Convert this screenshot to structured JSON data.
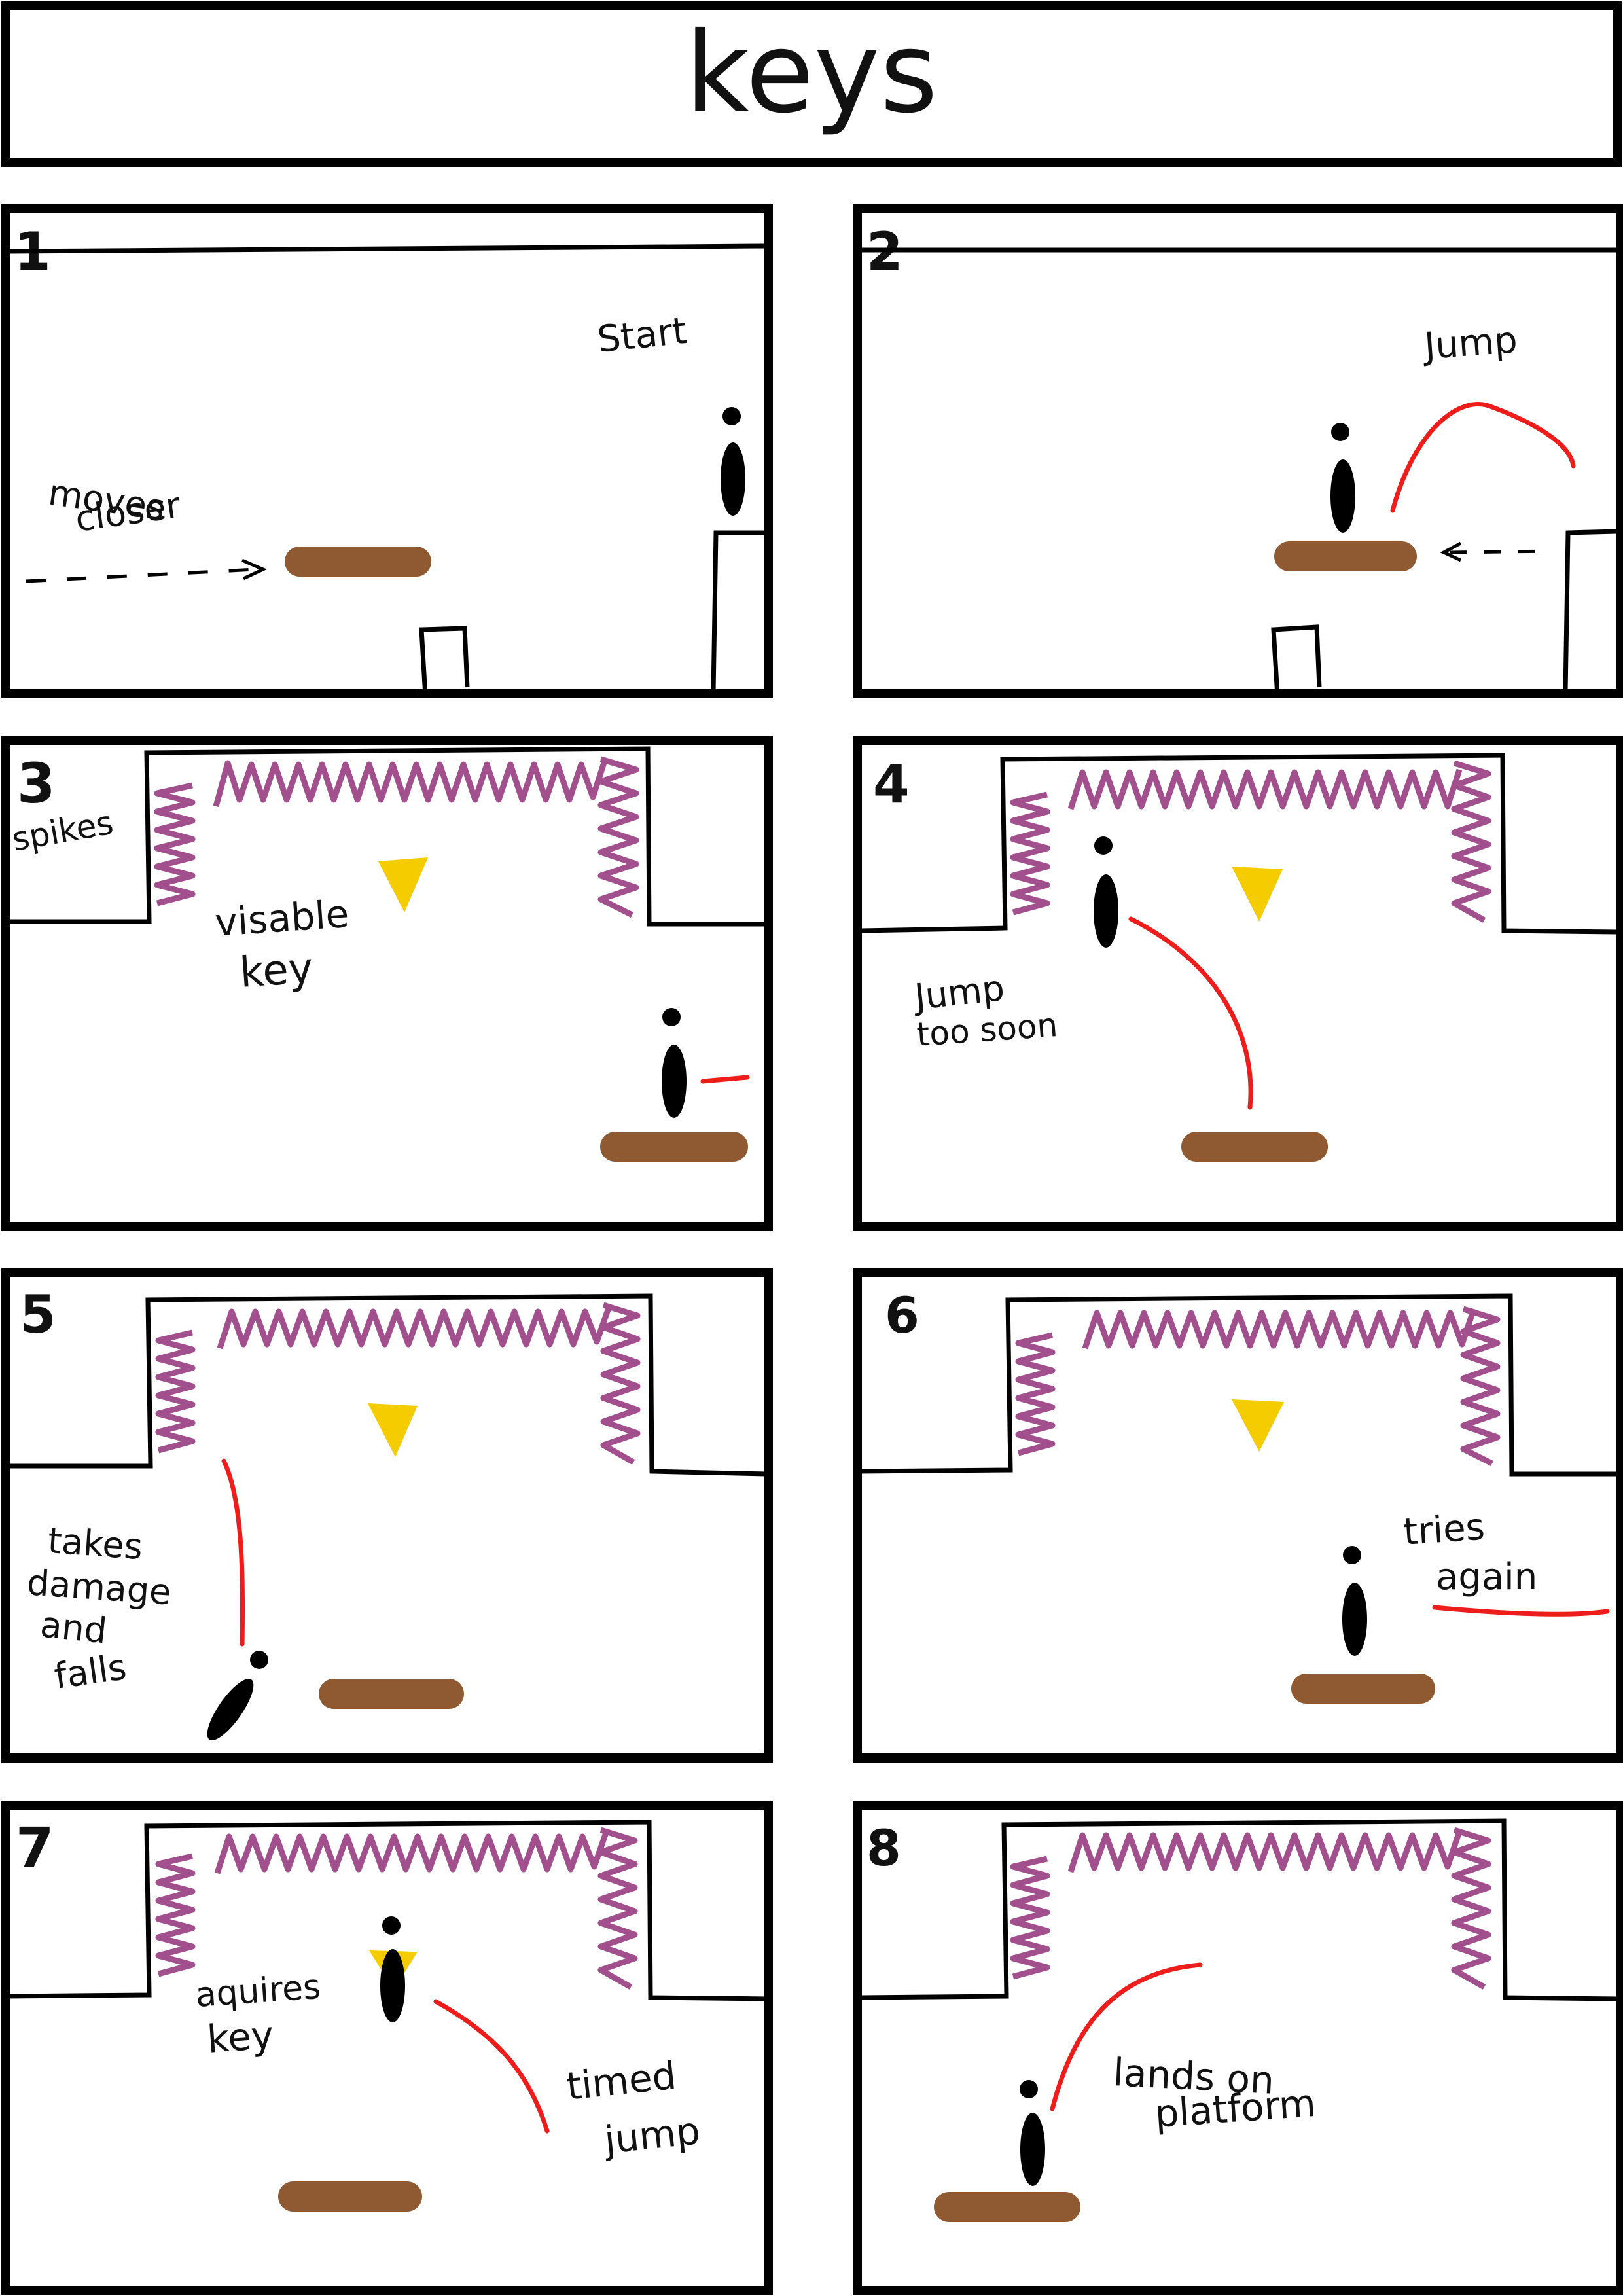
{
  "title": "keys",
  "colors": {
    "ink": "#000000",
    "spikes": "#a24f8e",
    "platform": "#8f5a31",
    "key": "#f5cc00",
    "arc": "#ef1c1c"
  },
  "icons": {
    "character": "stick-figure-icon",
    "key": "key-triangle-icon",
    "spikes": "spikes-icon",
    "platform": "platform-icon"
  },
  "panels": [
    {
      "number": "1",
      "notes": [
        "Start",
        "moves",
        "closer"
      ]
    },
    {
      "number": "2",
      "notes": [
        "Jump"
      ]
    },
    {
      "number": "3",
      "notes": [
        "spikes",
        "visable",
        "key"
      ]
    },
    {
      "number": "4",
      "notes": [
        "Jump",
        "too soon"
      ]
    },
    {
      "number": "5",
      "notes": [
        "takes",
        "damage",
        "and",
        "falls"
      ]
    },
    {
      "number": "6",
      "notes": [
        "tries",
        "again"
      ]
    },
    {
      "number": "7",
      "notes": [
        "aquires",
        "key",
        "timed",
        "jump"
      ]
    },
    {
      "number": "8",
      "notes": [
        "lands on",
        "platform"
      ]
    }
  ]
}
